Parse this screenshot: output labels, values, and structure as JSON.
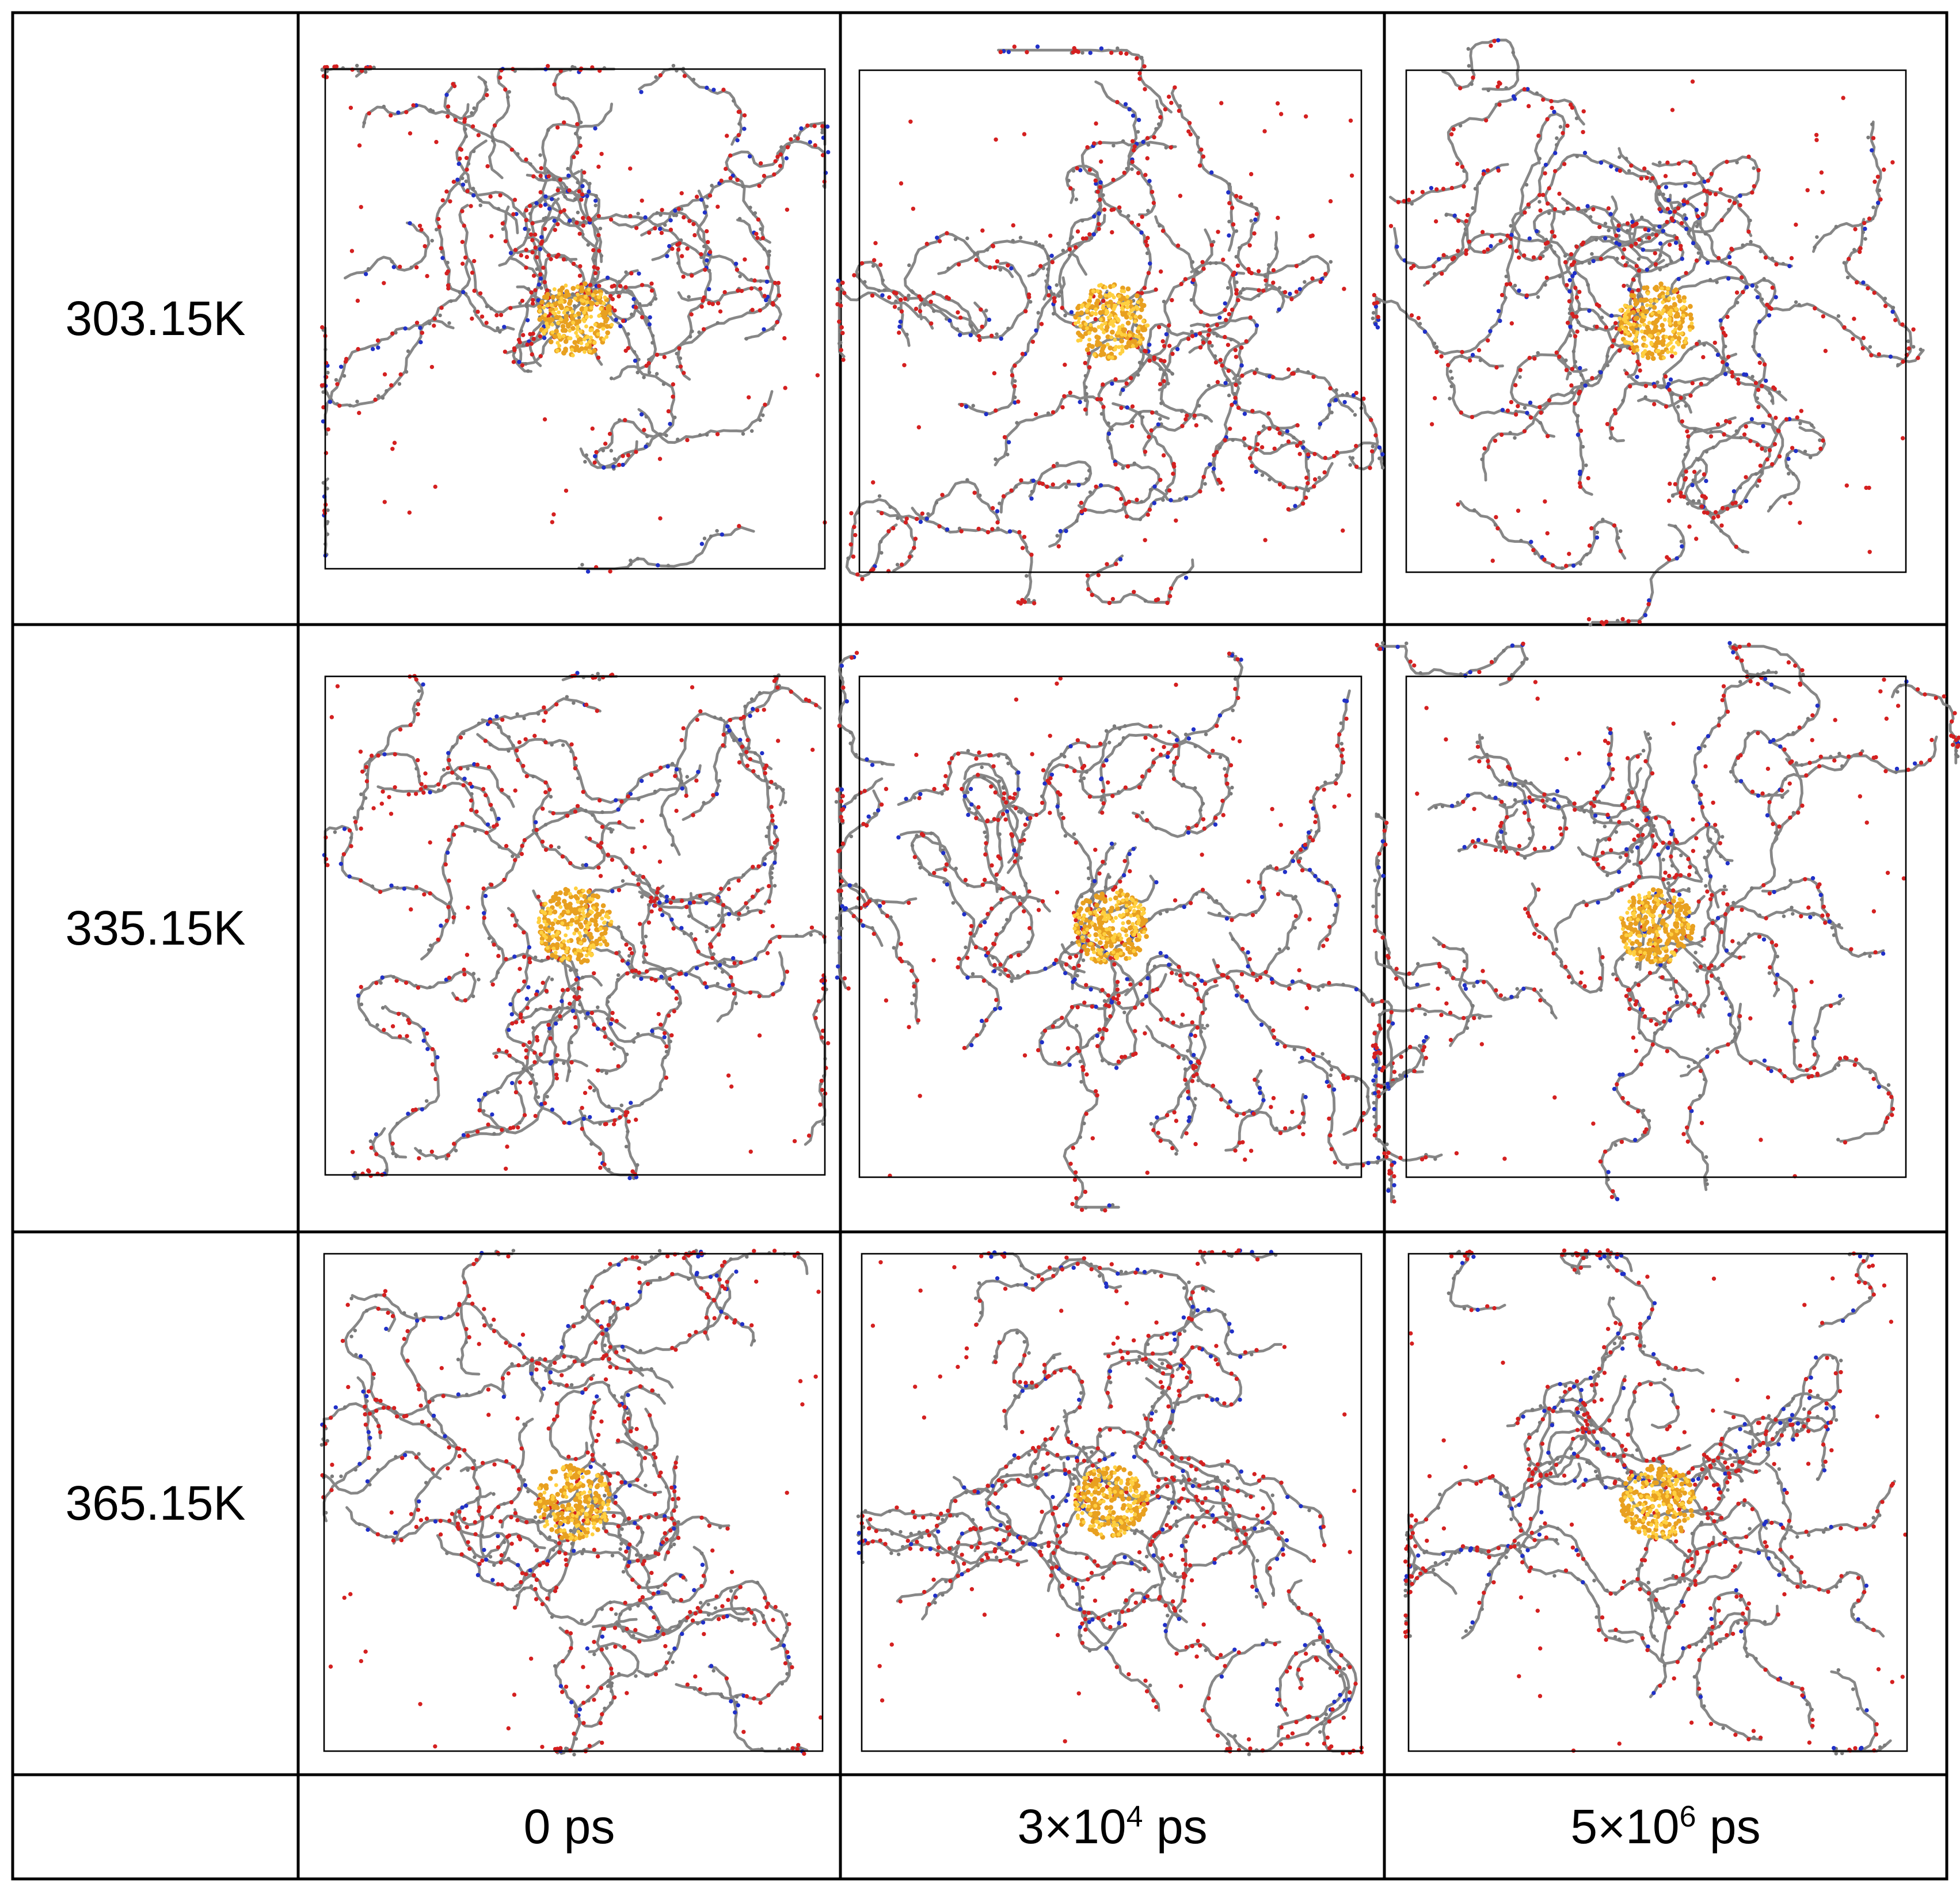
{
  "rows": [
    {
      "temperature": "303.15K"
    },
    {
      "temperature": "335.15K"
    },
    {
      "temperature": "365.15K"
    }
  ],
  "columns": [
    {
      "label": "0 ps"
    },
    {
      "base": "3×10",
      "exp": "4",
      "unit": " ps"
    },
    {
      "base": "5×10",
      "exp": "6",
      "unit": " ps"
    }
  ],
  "colors": {
    "carbon": "#7a7a7a",
    "oxygen": "#d42020",
    "nitrogen": "#2030c8",
    "core": "#e8a020",
    "core_highlight": "#ffd040",
    "box": "#000000",
    "grid_line": "#000000"
  }
}
